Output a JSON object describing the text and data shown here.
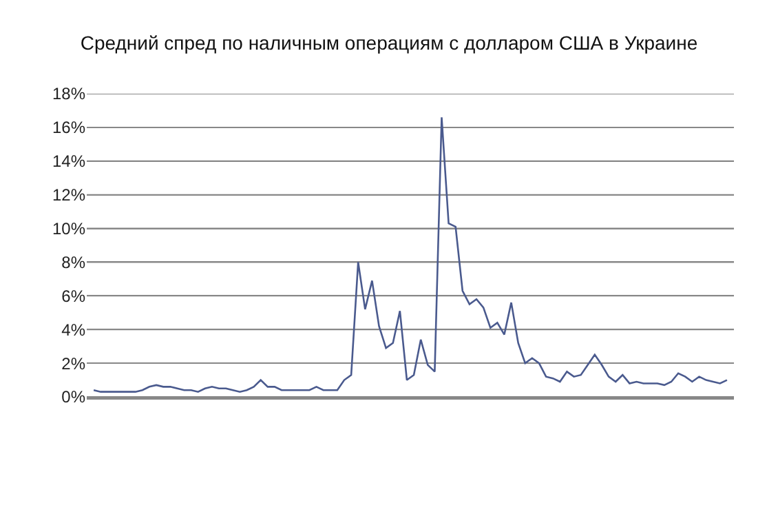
{
  "chart_data": {
    "type": "line",
    "title": "Средний спред по наличным операциям с долларом США в Украине",
    "categories": [
      null,
      null,
      null,
      null,
      null,
      null,
      null,
      null,
      null,
      null,
      null,
      null,
      null,
      null,
      null,
      null,
      null,
      null,
      null,
      null,
      null,
      null,
      null,
      null,
      null,
      null,
      null,
      null,
      null,
      null,
      null,
      null,
      null,
      null,
      null,
      null,
      null,
      null,
      null,
      null,
      null,
      null,
      null,
      null,
      null,
      null,
      null,
      null,
      null,
      null,
      null,
      null,
      null,
      null,
      null,
      null,
      null,
      null,
      null,
      null,
      null,
      null,
      null,
      null,
      null,
      null,
      null,
      null,
      null,
      null,
      null,
      null,
      null,
      null,
      null,
      null,
      null,
      null,
      null,
      null,
      null,
      null,
      null,
      null,
      null,
      null,
      null,
      null,
      null,
      null,
      null,
      null
    ],
    "series": [
      {
        "color": "#4a5a8e",
        "values": [
          0.4,
          0.3,
          0.3,
          0.3,
          0.3,
          0.3,
          0.3,
          0.4,
          0.6,
          0.7,
          0.6,
          0.6,
          0.5,
          0.4,
          0.4,
          0.3,
          0.5,
          0.6,
          0.5,
          0.5,
          0.4,
          0.3,
          0.4,
          0.6,
          1.0,
          0.6,
          0.6,
          0.4,
          0.4,
          0.4,
          0.4,
          0.4,
          0.6,
          0.4,
          0.4,
          0.4,
          1.0,
          1.3,
          8.0,
          5.2,
          6.9,
          4.2,
          2.9,
          3.2,
          5.1,
          1.0,
          1.3,
          3.4,
          1.9,
          1.5,
          16.6,
          10.3,
          10.1,
          6.3,
          5.5,
          5.8,
          5.3,
          4.1,
          4.4,
          3.7,
          5.6,
          3.2,
          2.0,
          2.3,
          2.0,
          1.2,
          1.1,
          0.9,
          1.5,
          1.2,
          1.3,
          1.9,
          2.5,
          1.9,
          1.2,
          0.9,
          1.3,
          0.8,
          0.9,
          0.8,
          0.8,
          0.8,
          0.7,
          0.9,
          1.4,
          1.2,
          0.9,
          1.2,
          1.0,
          0.9,
          0.8,
          1.0
        ]
      }
    ],
    "ylim": [
      0,
      18
    ],
    "yticks": [
      {
        "value": 0,
        "label": "0%"
      },
      {
        "value": 2,
        "label": "2%"
      },
      {
        "value": 4,
        "label": "4%"
      },
      {
        "value": 6,
        "label": "6%"
      },
      {
        "value": 8,
        "label": "8%"
      },
      {
        "value": 10,
        "label": "10%"
      },
      {
        "value": 12,
        "label": "12%"
      },
      {
        "value": 14,
        "label": "14%"
      },
      {
        "value": 16,
        "label": "16%"
      },
      {
        "value": 18,
        "label": "18%"
      }
    ],
    "grid": "y",
    "marker": "none",
    "line_style": "solid"
  }
}
